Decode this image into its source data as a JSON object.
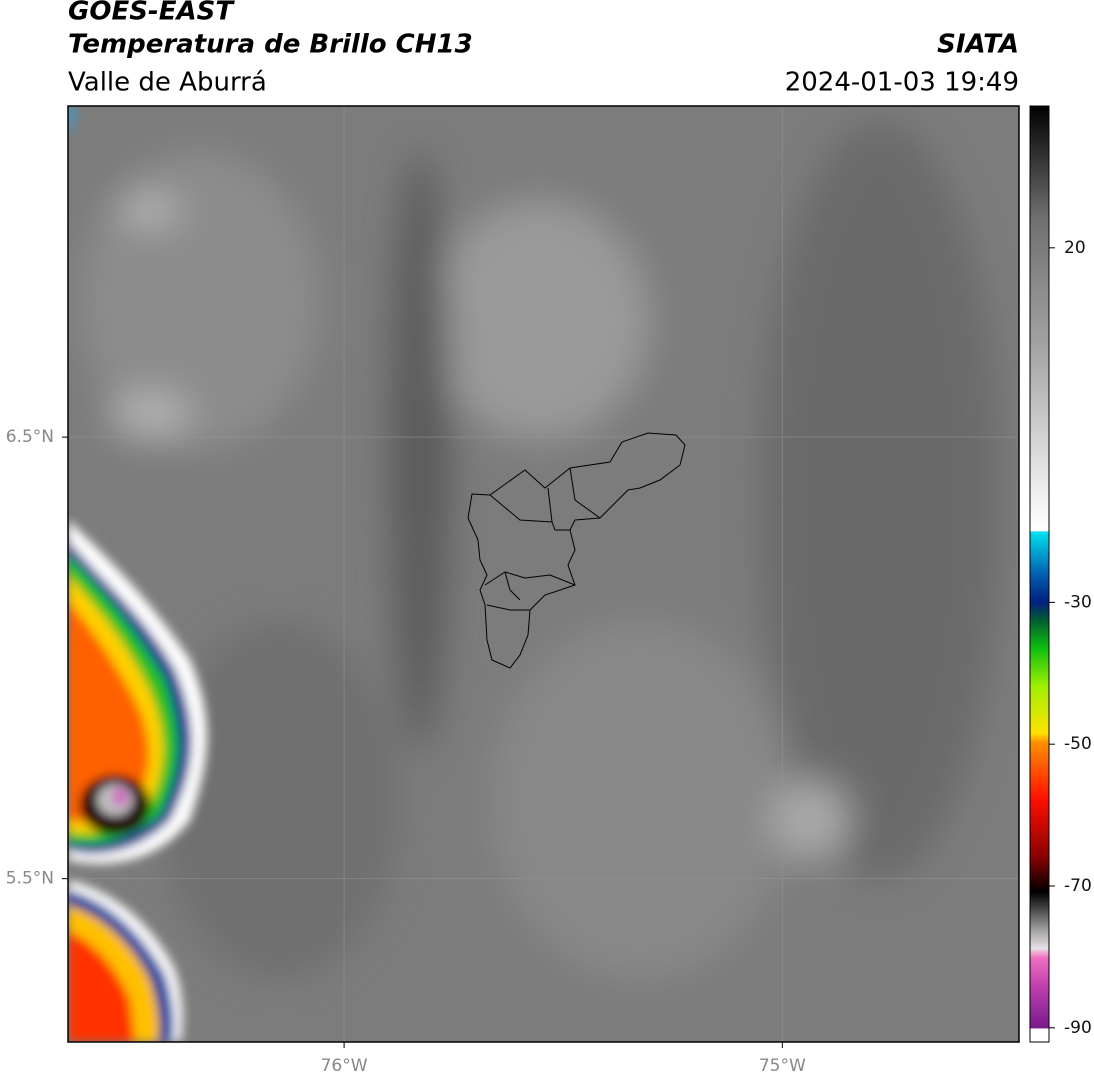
{
  "header": {
    "title": "GOES-EAST",
    "subtitle": "Temperatura de Brillo CH13",
    "region": "Valle de Aburrá",
    "source": "SIATA",
    "datetime": "2024-01-03 19:49"
  },
  "map": {
    "xlim": [
      -76.63,
      -74.46
    ],
    "ylim": [
      5.13,
      7.25
    ],
    "xticks": [
      {
        "value": -76,
        "label": "76°W"
      },
      {
        "value": -75,
        "label": "75°W"
      }
    ],
    "yticks": [
      {
        "value": 6.5,
        "label": "6.5°N"
      },
      {
        "value": 5.5,
        "label": "5.5°N"
      }
    ],
    "grid": true
  },
  "colorbar": {
    "lim": [
      -92,
      40
    ],
    "ticks": [
      20,
      -30,
      -50,
      -70,
      -90
    ]
  }
}
